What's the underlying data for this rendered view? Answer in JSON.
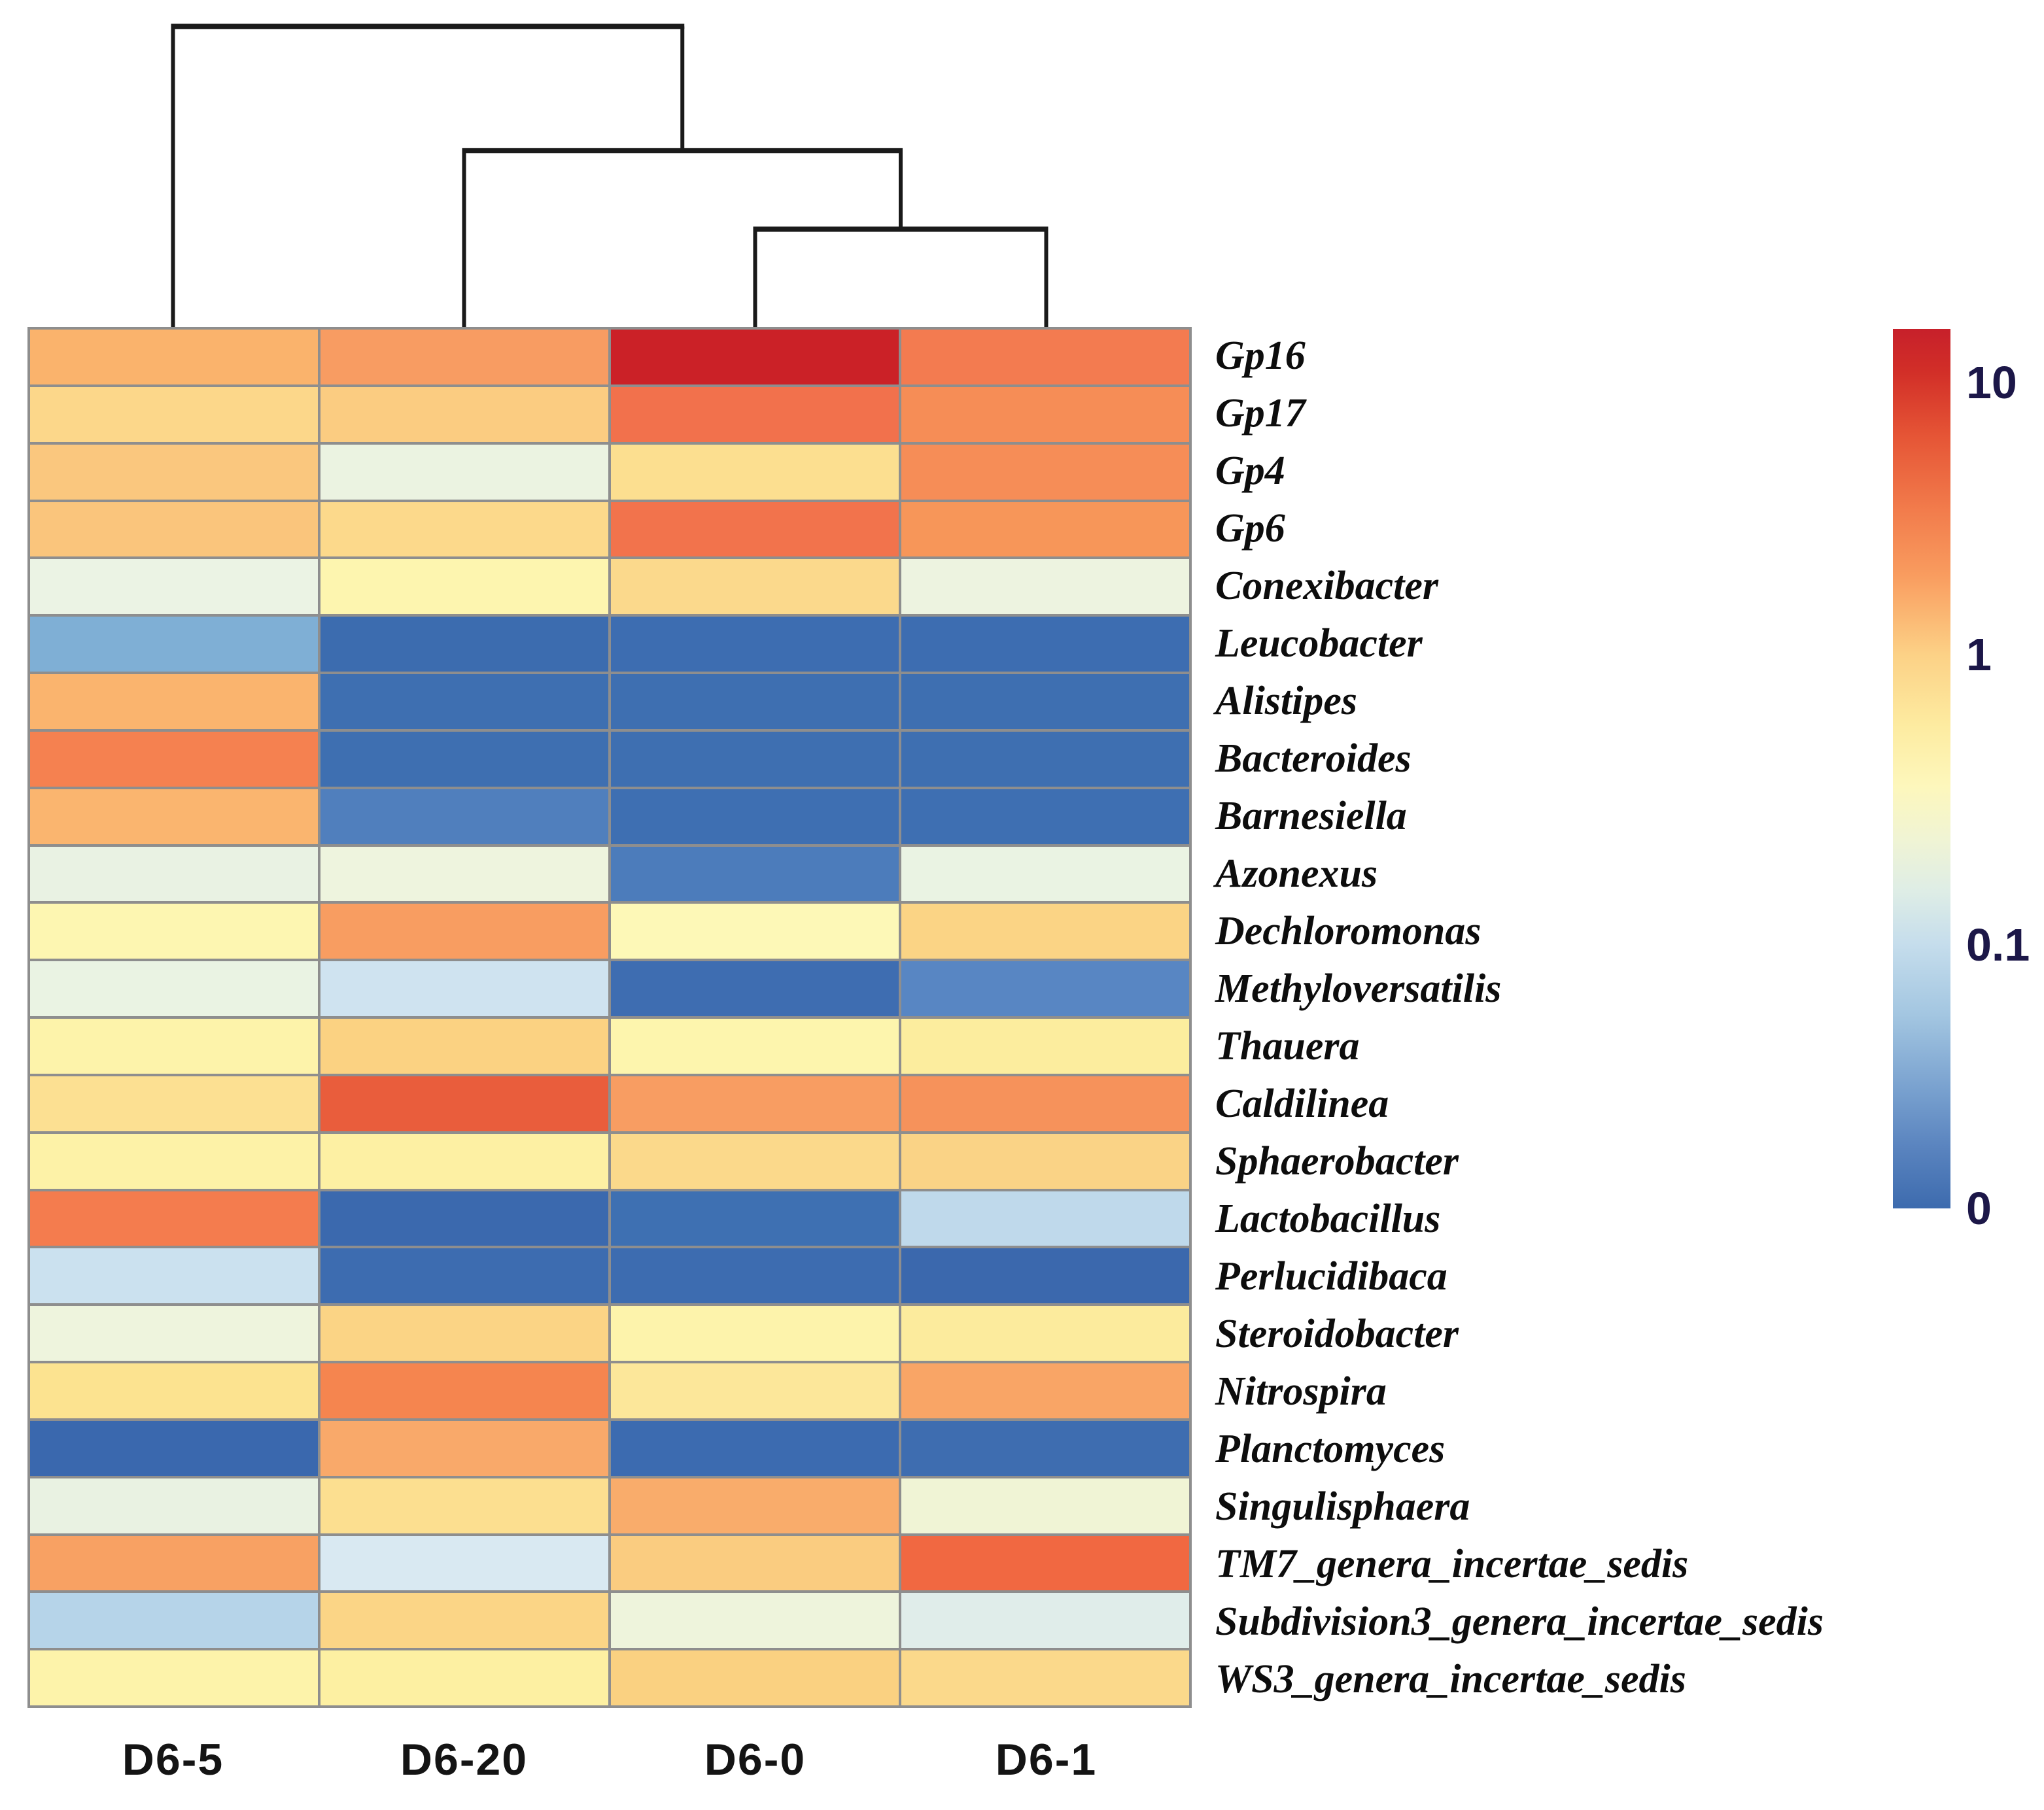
{
  "figure": {
    "background": "#ffffff",
    "grid_line_color": "#8E8E8E",
    "dendrogram_line_color": "#1a1a1a"
  },
  "chart_data": {
    "type": "heatmap",
    "title": "",
    "xlabel": "",
    "ylabel": "",
    "legend_position": "right",
    "value_scale": "log (relative abundance, 0 to >10)",
    "columns": [
      "D6-5",
      "D6-20",
      "D6-0",
      "D6-1"
    ],
    "rows": [
      "Gp16",
      "Gp17",
      "Gp4",
      "Gp6",
      "Conexibacter",
      "Leucobacter",
      "Alistipes",
      "Bacteroides",
      "Barnesiella",
      "Azonexus",
      "Dechloromonas",
      "Methyloversatilis",
      "Thauera",
      "Caldilinea",
      "Sphaerobacter",
      "Lactobacillus",
      "Perlucidibaca",
      "Steroidobacter",
      "Nitrospira",
      "Planctomyces",
      "Singulisphaera",
      "TM7_genera_incertae_sedis",
      "Subdivision3_genera_incertae_sedis",
      "WS3_genera_incertae_sedis"
    ],
    "values": [
      [
        3.0,
        3.5,
        12.0,
        6.0
      ],
      [
        1.8,
        2.0,
        6.5,
        5.0
      ],
      [
        2.2,
        0.25,
        1.2,
        5.0
      ],
      [
        2.3,
        1.5,
        6.5,
        4.5
      ],
      [
        0.25,
        0.6,
        1.5,
        0.22
      ],
      [
        0.05,
        0.005,
        0.005,
        0.005
      ],
      [
        2.8,
        0.005,
        0.005,
        0.005
      ],
      [
        5.5,
        0.005,
        0.005,
        0.005
      ],
      [
        3.0,
        0.02,
        0.005,
        0.005
      ],
      [
        0.25,
        0.3,
        0.02,
        0.25
      ],
      [
        0.55,
        3.5,
        0.5,
        1.8
      ],
      [
        0.25,
        0.12,
        0.005,
        0.03
      ],
      [
        0.6,
        1.8,
        0.55,
        0.8
      ],
      [
        1.2,
        8.0,
        3.5,
        4.5
      ],
      [
        0.65,
        0.7,
        1.5,
        1.7
      ],
      [
        5.5,
        0.005,
        0.005,
        0.1
      ],
      [
        0.12,
        0.005,
        0.005,
        0.005
      ],
      [
        0.3,
        1.8,
        0.6,
        0.9
      ],
      [
        1.3,
        5.0,
        1.0,
        3.0
      ],
      [
        0.005,
        3.0,
        0.005,
        0.005
      ],
      [
        0.25,
        1.2,
        3.0,
        0.45
      ],
      [
        3.2,
        0.13,
        2.0,
        6.5
      ],
      [
        0.09,
        1.8,
        0.3,
        0.25
      ],
      [
        0.6,
        0.65,
        2.0,
        1.5
      ]
    ],
    "cell_colors": [
      [
        "#FAB36C",
        "#F89C62",
        "#CB2127",
        "#F37B50"
      ],
      [
        "#FCD78A",
        "#FBCC81",
        "#F2714C",
        "#F68D56"
      ],
      [
        "#FAC77E",
        "#EBF3E1",
        "#FCDF90",
        "#F68D57"
      ],
      [
        "#FAC57C",
        "#FCD98B",
        "#F2734C",
        "#F79659"
      ],
      [
        "#EBF3E4",
        "#FDF5AF",
        "#FBD98C",
        "#EDF3E0"
      ],
      [
        "#7FAFD5",
        "#3C6CAF",
        "#3D6DB1",
        "#3D6DB1"
      ],
      [
        "#FAB46E",
        "#3E6FB1",
        "#3E6FB1",
        "#3E6FB1"
      ],
      [
        "#F58150",
        "#3E6FB1",
        "#3E6FB1",
        "#3E6FB1"
      ],
      [
        "#FAB56F",
        "#507FBD",
        "#3E6FB2",
        "#3E6FB2"
      ],
      [
        "#E9F2E3",
        "#EEF4DE",
        "#4C7CBB",
        "#EAF3E3"
      ],
      [
        "#FDF6B1",
        "#F89D61",
        "#FDF8B7",
        "#FBD485"
      ],
      [
        "#EAF3E3",
        "#CFE3F0",
        "#3E6DB1",
        "#5886C3"
      ],
      [
        "#FDF3AA",
        "#FBD282",
        "#FDF5AD",
        "#FCED9E"
      ],
      [
        "#FCE092",
        "#E95D3C",
        "#F89D62",
        "#F6925B"
      ],
      [
        "#FDF2A7",
        "#FDF0A3",
        "#FBD98B",
        "#FAD386"
      ],
      [
        "#F47C4E",
        "#3B69AE",
        "#3E70B2",
        "#BFD9EB"
      ],
      [
        "#CBE1EF",
        "#3D6CB0",
        "#3D6CB0",
        "#3B68AD"
      ],
      [
        "#EEF4DD",
        "#FBD485",
        "#FDF3AB",
        "#FCEB9D"
      ],
      [
        "#FCE390",
        "#F5854F",
        "#FCE79A",
        "#F9A566"
      ],
      [
        "#3A68AE",
        "#F9A96A",
        "#3C6BB0",
        "#3E6DB0"
      ],
      [
        "#E9F2E2",
        "#FCDF90",
        "#F9AC6B",
        "#F0F4D5"
      ],
      [
        "#F8A163",
        "#D9E9F2",
        "#FACC80",
        "#F16841"
      ],
      [
        "#B6D4E9",
        "#FBD586",
        "#EEF4DC",
        "#E0EDEA"
      ],
      [
        "#FDF3AA",
        "#FDF0A2",
        "#FAD181",
        "#FBD98B"
      ]
    ],
    "colorbar": {
      "scale": "log",
      "ticks": [
        {
          "label": "10",
          "pos": 0.061
        },
        {
          "label": "1",
          "pos": 0.37
        },
        {
          "label": "0.1",
          "pos": 0.7
        },
        {
          "label": "0",
          "pos": 1.0
        }
      ],
      "gradient": [
        [
          "0%",
          "#C7202A"
        ],
        [
          "5%",
          "#D22F28"
        ],
        [
          "12%",
          "#E55435"
        ],
        [
          "20%",
          "#F1794A"
        ],
        [
          "28%",
          "#F99C5F"
        ],
        [
          "37%",
          "#FCD186"
        ],
        [
          "45%",
          "#FDEBA0"
        ],
        [
          "52%",
          "#FDF7BC"
        ],
        [
          "58%",
          "#F0F4D4"
        ],
        [
          "64%",
          "#DEEDE6"
        ],
        [
          "70%",
          "#C5DDEC"
        ],
        [
          "78%",
          "#A3C6E1"
        ],
        [
          "86%",
          "#7BA3D0"
        ],
        [
          "93%",
          "#5A84BF"
        ],
        [
          "100%",
          "#3D6BAE"
        ]
      ]
    },
    "dendrogram": {
      "axis": "columns",
      "leaf_order": [
        "D6-5",
        "D6-20",
        "D6-0",
        "D6-1"
      ],
      "merges": [
        {
          "a": [
            "leaf",
            2
          ],
          "b": [
            "leaf",
            3
          ],
          "height": 0.318
        },
        {
          "a": [
            "leaf",
            1
          ],
          "b": [
            "merge",
            0
          ],
          "height": 0.574
        },
        {
          "a": [
            "leaf",
            0
          ],
          "b": [
            "merge",
            1
          ],
          "height": 0.978
        }
      ]
    }
  }
}
